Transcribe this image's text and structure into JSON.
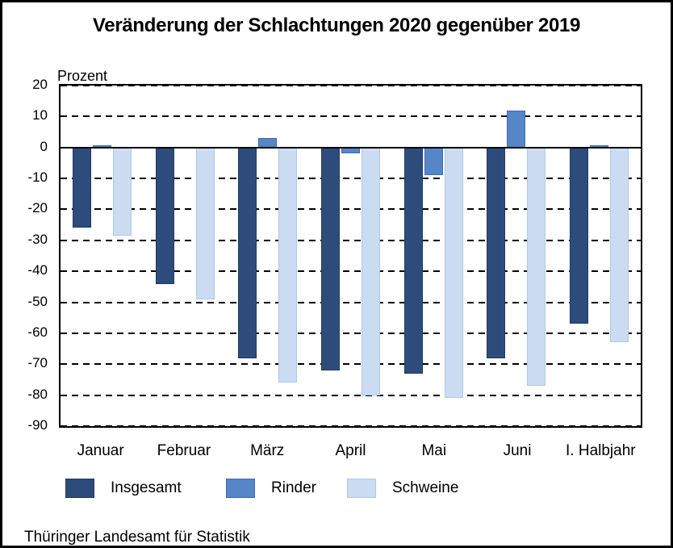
{
  "title": "Veränderung der Schlachtungen 2020 gegenüber 2019",
  "source_note": "Thüringer Landesamt für Statistik",
  "colors": {
    "background": "#ffffff",
    "frame_border": "#000000",
    "axis": "#000000",
    "series_insgesamt": "#2E4C7B",
    "series_rinder": "#5586C7",
    "series_schweine": "#CBDCF2"
  },
  "chart_data": {
    "type": "bar",
    "title": "Veränderung der Schlachtungen 2020 gegenüber 2019",
    "xlabel": "",
    "ylabel": "Prozent",
    "ylim": [
      -90,
      20
    ],
    "ytick_step": 10,
    "yticks": [
      20,
      10,
      0,
      -10,
      -20,
      -30,
      -40,
      -50,
      -60,
      -70,
      -80,
      -90
    ],
    "grid": "horizontal-dashed",
    "legend_position": "bottom",
    "categories": [
      "Januar",
      "Februar",
      "März",
      "April",
      "Mai",
      "Juni",
      "I. Halbjahr"
    ],
    "series": [
      {
        "name": "Insgesamt",
        "color": "#2E4C7B",
        "border_color": "#203A5F",
        "values": [
          -26,
          -44,
          -68,
          -72,
          -73,
          -68,
          -57
        ]
      },
      {
        "name": "Rinder",
        "color": "#5586C7",
        "border_color": "#3D6CAC",
        "values": [
          0.5,
          0,
          3,
          -2,
          -9,
          12,
          0.5
        ]
      },
      {
        "name": "Schweine",
        "color": "#CBDCF2",
        "border_color": "#AFC7E6",
        "values": [
          -28.5,
          -49,
          -76,
          -80,
          -81,
          -77,
          -63
        ]
      }
    ]
  }
}
